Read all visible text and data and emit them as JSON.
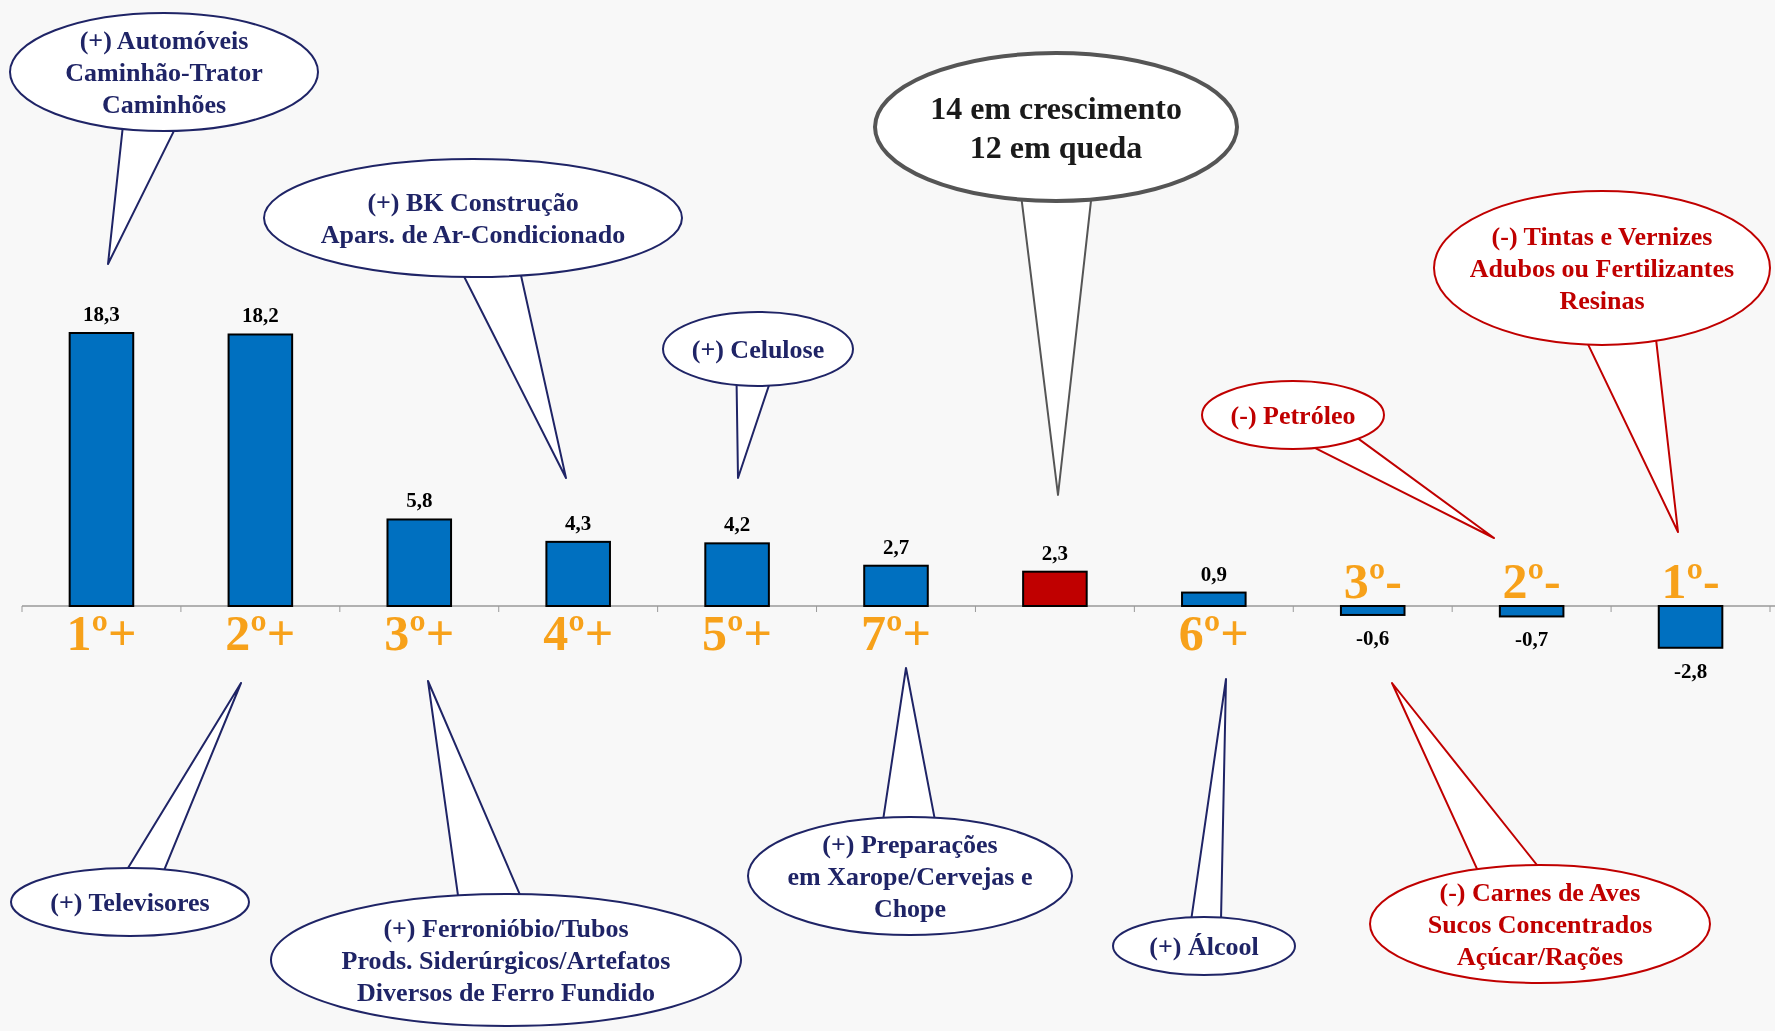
{
  "chart_data": {
    "type": "bar",
    "categories": [
      "1º+",
      "2º+",
      "3º+",
      "4º+",
      "5º+",
      "7º+",
      null,
      "6º+",
      "3º-",
      "2º-",
      "1º-"
    ],
    "values": [
      18.3,
      18.2,
      5.8,
      4.3,
      4.2,
      2.7,
      2.3,
      0.9,
      -0.6,
      -0.7,
      -2.8
    ],
    "colors": [
      "#0070c0",
      "#0070c0",
      "#0070c0",
      "#0070c0",
      "#0070c0",
      "#0070c0",
      "#c00000",
      "#0070c0",
      "#0070c0",
      "#0070c0",
      "#0070c0"
    ],
    "value_labels": [
      "18,3",
      "18,2",
      "5,8",
      "4,3",
      "4,2",
      "2,7",
      "2,3",
      "0,9",
      "-0,6",
      "-0,7",
      "-2,8"
    ],
    "annotations": [
      "(+) Automóveis\nCaminhão-Trator\nCaminhões",
      "(+) Televisores",
      "(+) BK Construção\nApars. de Ar-Condicionado",
      "(+) Ferronióbio/Tubos\nProds. Siderúrgicos/Artefatos\nDiversos de Ferro Fundido",
      "(+) Celulose",
      "(+) Preparações\nem Xarope/Cervejas e\nChope",
      "14 em crescimento\n12 em queda",
      "(+) Álcool",
      "(-) Petróleo",
      "(-) Tintas e Vernizes\nAdubos ou Fertilizantes\nResinas",
      "(-) Carnes de Aves\nSucos Concentrados\nAçúcar/Rações"
    ]
  }
}
